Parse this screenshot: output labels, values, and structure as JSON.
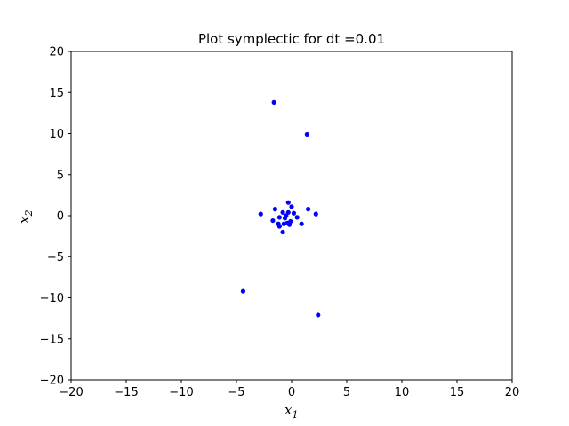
{
  "chart_data": {
    "type": "scatter",
    "title": "Plot symplectic for dt =0.01",
    "xlabel": "x",
    "xlabel_sub": "1",
    "ylabel": "x",
    "ylabel_sub": "2",
    "xlim": [
      -20,
      20
    ],
    "ylim": [
      -20,
      20
    ],
    "xticks": [
      -20,
      -15,
      -10,
      -5,
      0,
      5,
      10,
      15,
      20
    ],
    "yticks": [
      -20,
      -15,
      -10,
      -5,
      0,
      5,
      10,
      15,
      20
    ],
    "xtick_labels": [
      "−20",
      "−15",
      "−10",
      "−5",
      "0",
      "5",
      "10",
      "15",
      "20"
    ],
    "ytick_labels": [
      "−20",
      "−15",
      "−10",
      "−5",
      "0",
      "5",
      "10",
      "15",
      "20"
    ],
    "grid": false,
    "marker_color": "#0000ff",
    "series": [
      {
        "points": [
          [
            -1.6,
            13.8
          ],
          [
            1.4,
            9.9
          ],
          [
            -4.4,
            -9.2
          ],
          [
            2.4,
            -12.1
          ],
          [
            -2.8,
            0.2
          ],
          [
            -1.5,
            0.8
          ],
          [
            -1.7,
            -0.6
          ],
          [
            -1.1,
            -0.2
          ],
          [
            -1.2,
            -1.0
          ],
          [
            -1.1,
            -1.3
          ],
          [
            -0.8,
            -2.0
          ],
          [
            -0.8,
            0.4
          ],
          [
            -0.6,
            -0.3
          ],
          [
            -0.5,
            0.0
          ],
          [
            -0.4,
            -0.9
          ],
          [
            -0.3,
            1.6
          ],
          [
            -0.3,
            0.4
          ],
          [
            -0.2,
            -1.1
          ],
          [
            -0.1,
            -0.7
          ],
          [
            -0.7,
            -1.0
          ],
          [
            0.0,
            1.1
          ],
          [
            0.2,
            0.3
          ],
          [
            0.5,
            -0.2
          ],
          [
            0.9,
            -1.0
          ],
          [
            1.5,
            0.8
          ],
          [
            2.2,
            0.2
          ]
        ]
      }
    ]
  }
}
